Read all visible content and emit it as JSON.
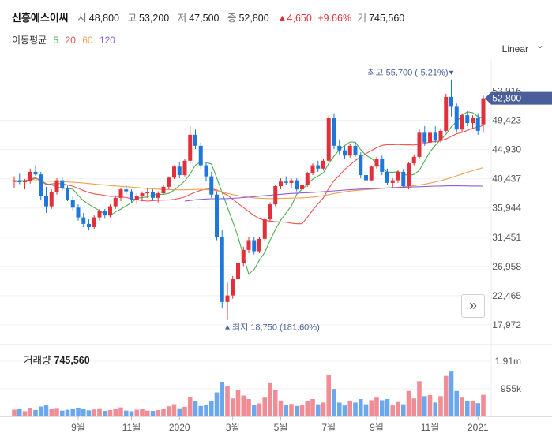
{
  "header": {
    "name": "신흥에스이씨",
    "open_label": "시",
    "open": "48,800",
    "high_label": "고",
    "high": "53,200",
    "low_label": "저",
    "low": "47,500",
    "close_label": "종",
    "close": "52,800",
    "change": "▲4,650",
    "change_pct": "+9.66%",
    "volume_label": "거",
    "volume": "745,560"
  },
  "ma_legend": {
    "title": "이동평균",
    "items": [
      {
        "period": "5",
        "color": "#4caf50"
      },
      {
        "period": "20",
        "color": "#ef5350"
      },
      {
        "period": "60",
        "color": "#f0a050"
      },
      {
        "period": "120",
        "color": "#8e5bd8"
      }
    ]
  },
  "scale": {
    "label": "Linear",
    "icon": "chevron-down-icon"
  },
  "nav_button": {
    "label": "»",
    "icon": "double-chevron-right-icon"
  },
  "volume_panel": {
    "title": "거래량",
    "value": "745,560"
  },
  "colors": {
    "up": "#e0313b",
    "down": "#1e78dc",
    "up_volume": "#f08c95",
    "down_volume": "#6aa8ee",
    "current_tag": "#4a5f9a"
  },
  "chart_data": {
    "type": "candlestick",
    "ylim": [
      17000,
      57000
    ],
    "price_ticks": [
      "53,916",
      "49,423",
      "44,930",
      "40,437",
      "35,944",
      "31,451",
      "26,958",
      "22,465",
      "17,972"
    ],
    "current_price": "52,800",
    "annotations": {
      "high": {
        "label": "최고 55,700 (-5.21%)",
        "value": 55700
      },
      "low": {
        "label": "최저 18,750 (181.60%)",
        "value": 18750
      }
    },
    "x_ticks": [
      {
        "label": "9월",
        "index": 12
      },
      {
        "label": "11월",
        "index": 22
      },
      {
        "label": "2020",
        "index": 31
      },
      {
        "label": "3월",
        "index": 41
      },
      {
        "label": "5월",
        "index": 50
      },
      {
        "label": "7월",
        "index": 59
      },
      {
        "label": "9월",
        "index": 68
      },
      {
        "label": "11월",
        "index": 78
      },
      {
        "label": "2021",
        "index": 87
      }
    ],
    "volume_ticks": [
      {
        "label": "1.91m",
        "value": 1910000
      },
      {
        "label": "955k",
        "value": 955000
      }
    ],
    "volume_max": 2400000,
    "candles": [
      [
        40000,
        40800,
        39000,
        40200
      ],
      [
        40200,
        41200,
        39600,
        39900
      ],
      [
        39900,
        40400,
        38800,
        40100
      ],
      [
        40100,
        42000,
        39700,
        41500
      ],
      [
        41500,
        42500,
        40900,
        41100
      ],
      [
        41100,
        41500,
        37200,
        37800
      ],
      [
        37800,
        39200,
        35200,
        36200
      ],
      [
        36200,
        38800,
        35800,
        38400
      ],
      [
        38400,
        40500,
        38000,
        40200
      ],
      [
        40200,
        40800,
        38600,
        39000
      ],
      [
        39000,
        39400,
        37000,
        37200
      ],
      [
        37200,
        37800,
        35500,
        36000
      ],
      [
        36000,
        36500,
        34000,
        34500
      ],
      [
        34500,
        35200,
        33000,
        33500
      ],
      [
        33500,
        34200,
        32500,
        33000
      ],
      [
        33000,
        34800,
        32700,
        34500
      ],
      [
        34500,
        35800,
        34000,
        35500
      ],
      [
        35500,
        35800,
        34300,
        34800
      ],
      [
        34800,
        36500,
        34500,
        36200
      ],
      [
        36200,
        37800,
        35800,
        37500
      ],
      [
        37500,
        39000,
        37000,
        38800
      ],
      [
        38800,
        39500,
        38000,
        38500
      ],
      [
        38500,
        38800,
        36800,
        37200
      ],
      [
        37200,
        38200,
        36500,
        37800
      ],
      [
        37800,
        38500,
        37000,
        38200
      ],
      [
        38200,
        39000,
        37500,
        38400
      ],
      [
        38400,
        38800,
        37200,
        37500
      ],
      [
        37500,
        38500,
        36800,
        38200
      ],
      [
        38200,
        39500,
        38000,
        39200
      ],
      [
        39200,
        40800,
        38800,
        40600
      ],
      [
        40600,
        42500,
        40400,
        42300
      ],
      [
        42300,
        43000,
        40500,
        41000
      ],
      [
        41000,
        43500,
        40800,
        43200
      ],
      [
        43200,
        48500,
        42800,
        47200
      ],
      [
        47200,
        48000,
        45000,
        45500
      ],
      [
        45500,
        46000,
        42000,
        42500
      ],
      [
        42500,
        43000,
        40000,
        40800
      ],
      [
        40800,
        41500,
        37500,
        38000
      ],
      [
        38000,
        38500,
        31000,
        31500
      ],
      [
        31500,
        32500,
        20500,
        21500
      ],
      [
        21500,
        24500,
        18750,
        22500
      ],
      [
        22500,
        25500,
        22000,
        25000
      ],
      [
        25000,
        28000,
        24500,
        27500
      ],
      [
        27500,
        30000,
        27000,
        29500
      ],
      [
        29500,
        31500,
        29000,
        31000
      ],
      [
        31000,
        31500,
        28800,
        29300
      ],
      [
        29300,
        31500,
        29000,
        31200
      ],
      [
        31200,
        34500,
        30800,
        34200
      ],
      [
        34200,
        36800,
        33800,
        36500
      ],
      [
        36500,
        39500,
        36200,
        39300
      ],
      [
        39300,
        40500,
        38800,
        40000
      ],
      [
        40000,
        40800,
        39500,
        39800
      ],
      [
        39800,
        40500,
        39000,
        40200
      ],
      [
        40200,
        40500,
        38500,
        38800
      ],
      [
        38800,
        39800,
        38300,
        39500
      ],
      [
        39500,
        41500,
        39200,
        41300
      ],
      [
        41300,
        42800,
        41000,
        42500
      ],
      [
        42500,
        43200,
        41500,
        42000
      ],
      [
        42000,
        43500,
        41700,
        43200
      ],
      [
        43200,
        50200,
        43000,
        49800
      ],
      [
        49800,
        50500,
        45000,
        45500
      ],
      [
        45500,
        46500,
        44200,
        44800
      ],
      [
        44800,
        45500,
        43500,
        44000
      ],
      [
        44000,
        45800,
        43700,
        45500
      ],
      [
        45500,
        46000,
        43800,
        44100
      ],
      [
        44100,
        44500,
        40500,
        41000
      ],
      [
        41000,
        41500,
        39800,
        40200
      ],
      [
        40200,
        42500,
        40000,
        42300
      ],
      [
        42300,
        43800,
        42000,
        43500
      ],
      [
        43500,
        44000,
        41000,
        41500
      ],
      [
        41500,
        42000,
        39500,
        39800
      ],
      [
        39800,
        40500,
        39000,
        40200
      ],
      [
        40200,
        41800,
        39800,
        41500
      ],
      [
        41500,
        42000,
        39000,
        39300
      ],
      [
        39300,
        43000,
        38800,
        42800
      ],
      [
        42800,
        44200,
        42500,
        43800
      ],
      [
        43800,
        48000,
        43500,
        47500
      ],
      [
        47500,
        48500,
        45500,
        46000
      ],
      [
        46000,
        47800,
        45700,
        47500
      ],
      [
        47500,
        48500,
        46000,
        46300
      ],
      [
        46300,
        48200,
        46000,
        47800
      ],
      [
        47800,
        53500,
        47500,
        53000
      ],
      [
        53000,
        55700,
        50000,
        51500
      ],
      [
        51500,
        52000,
        47500,
        48000
      ],
      [
        48000,
        50500,
        47500,
        50200
      ],
      [
        50200,
        50800,
        48500,
        49000
      ],
      [
        49000,
        50200,
        48200,
        49800
      ],
      [
        49800,
        50500,
        47200,
        47800
      ],
      [
        48800,
        53200,
        47500,
        52800
      ]
    ],
    "volumes": [
      230000,
      260000,
      180000,
      300000,
      220000,
      340000,
      380000,
      250000,
      290000,
      200000,
      230000,
      260000,
      300000,
      270000,
      210000,
      240000,
      280000,
      190000,
      220000,
      260000,
      310000,
      200000,
      180000,
      230000,
      250000,
      200000,
      190000,
      220000,
      270000,
      350000,
      420000,
      280000,
      330000,
      680000,
      520000,
      360000,
      400000,
      520000,
      830000,
      1200000,
      1050000,
      620000,
      900000,
      720000,
      600000,
      380000,
      450000,
      650000,
      1150000,
      920000,
      550000,
      400000,
      430000,
      360000,
      380000,
      520000,
      600000,
      420000,
      480000,
      1420000,
      950000,
      480000,
      380000,
      520000,
      480000,
      600000,
      420000,
      560000,
      650000,
      560000,
      600000,
      380000,
      500000,
      420000,
      880000,
      620000,
      1220000,
      700000,
      740000,
      480000,
      700000,
      1400000,
      1550000,
      880000,
      650000,
      520000,
      540000,
      460000,
      745560
    ],
    "series": [
      {
        "name": "5",
        "values": [
          40000,
          40152,
          40138,
          40244,
          40470,
          40218,
          39668,
          39496,
          39154,
          38962,
          38962,
          38848,
          37882,
          37052,
          36500,
          35990,
          35540,
          34982,
          34806,
          35336,
          35780,
          36256,
          36786,
          37432,
          37560,
          37640,
          37964,
          38016,
          38028,
          38202,
          38692,
          39392,
          40102,
          41206,
          42542,
          43030,
          42962,
          42680,
          40550,
          38284,
          36060,
          33848,
          31488,
          28566,
          25760,
          26496,
          27928,
          29118,
          30968,
          32640,
          34094,
          35196,
          36262,
          38060,
          38834,
          39568,
          40370,
          40860,
          41338,
          42788,
          43896,
          44916,
          45536,
          46094,
          46060,
          44892,
          44040,
          43576,
          42760,
          42098,
          41464,
          41410,
          41530,
          41154,
          40914,
          41114,
          41728,
          43212,
          44560,
          45588,
          46452,
          47266,
          48430,
          49206,
          50180,
          50716,
          50582,
          49960,
          49780
        ],
        "color": "#4caf50"
      },
      {
        "name": "20",
        "values": [
          40000,
          40050,
          40067,
          40425,
          40560,
          40150,
          39543,
          39638,
          39698,
          39670,
          39482,
          39287,
          38962,
          38610,
          38327,
          38112,
          38003,
          37869,
          37745,
          37738,
          37663,
          37548,
          37371,
          37221,
          37086,
          36997,
          37075,
          37145,
          37155,
          37165,
          37270,
          37420,
          37655,
          38043,
          38380,
          38672,
          38827,
          38896,
          38715,
          38340,
          37905,
          37290,
          36634,
          36003,
          35388,
          34797,
          34314,
          34044,
          33931,
          33848,
          33806,
          33762,
          33619,
          33521,
          33516,
          34526,
          35614,
          36613,
          37508,
          38948,
          40155,
          40956,
          41847,
          42561,
          43241,
          43789,
          44304,
          44760,
          45202,
          45574,
          45686,
          45667,
          45713,
          45648,
          45650,
          45625,
          45747,
          45895,
          46079,
          46138,
          46268,
          46554,
          46954,
          47350,
          47566,
          47855,
          48199,
          48371,
          48620
        ],
        "color": "#ef5350"
      },
      {
        "name": "60",
        "values": [
          40000,
          40025,
          40045,
          40100,
          40150,
          40140,
          40080,
          40050,
          40020,
          39990,
          39950,
          39900,
          39850,
          39780,
          39700,
          39620,
          39550,
          39470,
          39390,
          39330,
          39270,
          39210,
          39150,
          39080,
          39010,
          38940,
          38890,
          38840,
          38800,
          38760,
          38740,
          38730,
          38730,
          38760,
          38790,
          38800,
          38770,
          38720,
          38600,
          38430,
          38200,
          38000,
          37850,
          37700,
          37600,
          37500,
          37450,
          37400,
          37390,
          37380,
          37410,
          37440,
          37460,
          37480,
          37500,
          37550,
          37630,
          37720,
          37840,
          38000,
          38160,
          38300,
          38430,
          38540,
          38630,
          38700,
          38760,
          38820,
          38880,
          38940,
          39000,
          39060,
          39130,
          39200,
          39280,
          39370,
          39480,
          39600,
          39760,
          39940,
          40140,
          40370,
          40620,
          40880,
          41150,
          41420,
          41680,
          41920,
          42150
        ],
        "color": "#f0a050"
      },
      {
        "name": "120",
        "values": [
          null,
          null,
          null,
          null,
          null,
          null,
          null,
          null,
          null,
          null,
          null,
          null,
          null,
          null,
          null,
          null,
          null,
          null,
          null,
          null,
          null,
          null,
          null,
          null,
          null,
          null,
          null,
          null,
          null,
          null,
          null,
          null,
          37000,
          37100,
          37200,
          37270,
          37330,
          37360,
          37360,
          37370,
          37390,
          37430,
          37480,
          37540,
          37610,
          37680,
          37760,
          37840,
          37910,
          37990,
          38060,
          38120,
          38180,
          38230,
          38260,
          38300,
          38340,
          38400,
          38460,
          38520,
          38580,
          38640,
          38700,
          38750,
          38800,
          38840,
          38880,
          38920,
          38960,
          38990,
          39020,
          39050,
          39090,
          39120,
          39150,
          39180,
          39210,
          39240,
          39270,
          39300,
          39320,
          39340,
          39350,
          39350,
          39340,
          39330,
          39320,
          39310,
          39300
        ],
        "color": "#8e5bd8"
      }
    ]
  }
}
